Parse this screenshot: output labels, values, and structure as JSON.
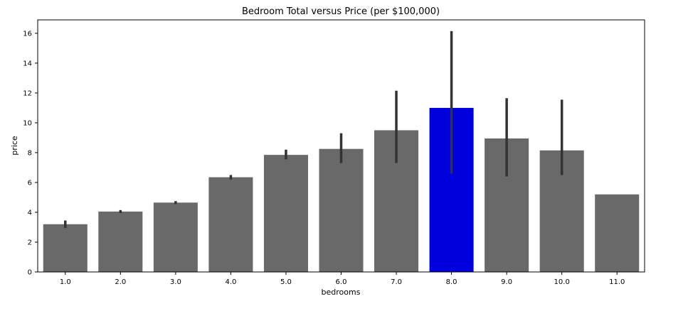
{
  "chart_data": {
    "type": "bar",
    "title": "Bedroom Total versus Price (per $100,000)",
    "xlabel": "bedrooms",
    "ylabel": "price",
    "categories": [
      "1.0",
      "2.0",
      "3.0",
      "4.0",
      "5.0",
      "6.0",
      "7.0",
      "8.0",
      "9.0",
      "10.0",
      "11.0"
    ],
    "values": [
      3.2,
      4.05,
      4.65,
      6.35,
      7.85,
      8.25,
      9.5,
      11.0,
      8.95,
      8.15,
      5.2
    ],
    "error_low": [
      2.95,
      3.95,
      4.55,
      6.2,
      7.55,
      7.3,
      7.3,
      6.6,
      6.4,
      6.5,
      null
    ],
    "error_high": [
      3.45,
      4.15,
      4.75,
      6.5,
      8.2,
      9.3,
      12.15,
      16.15,
      11.65,
      11.55,
      null
    ],
    "ylim": [
      0,
      16.9
    ],
    "yticks": [
      0,
      2,
      4,
      6,
      8,
      10,
      12,
      14,
      16
    ],
    "bar_color": "#696969",
    "highlight_color": "#0000dd",
    "highlight_category": "8.0",
    "errorbar_color": "#333333",
    "grid": false,
    "legend": "none"
  }
}
